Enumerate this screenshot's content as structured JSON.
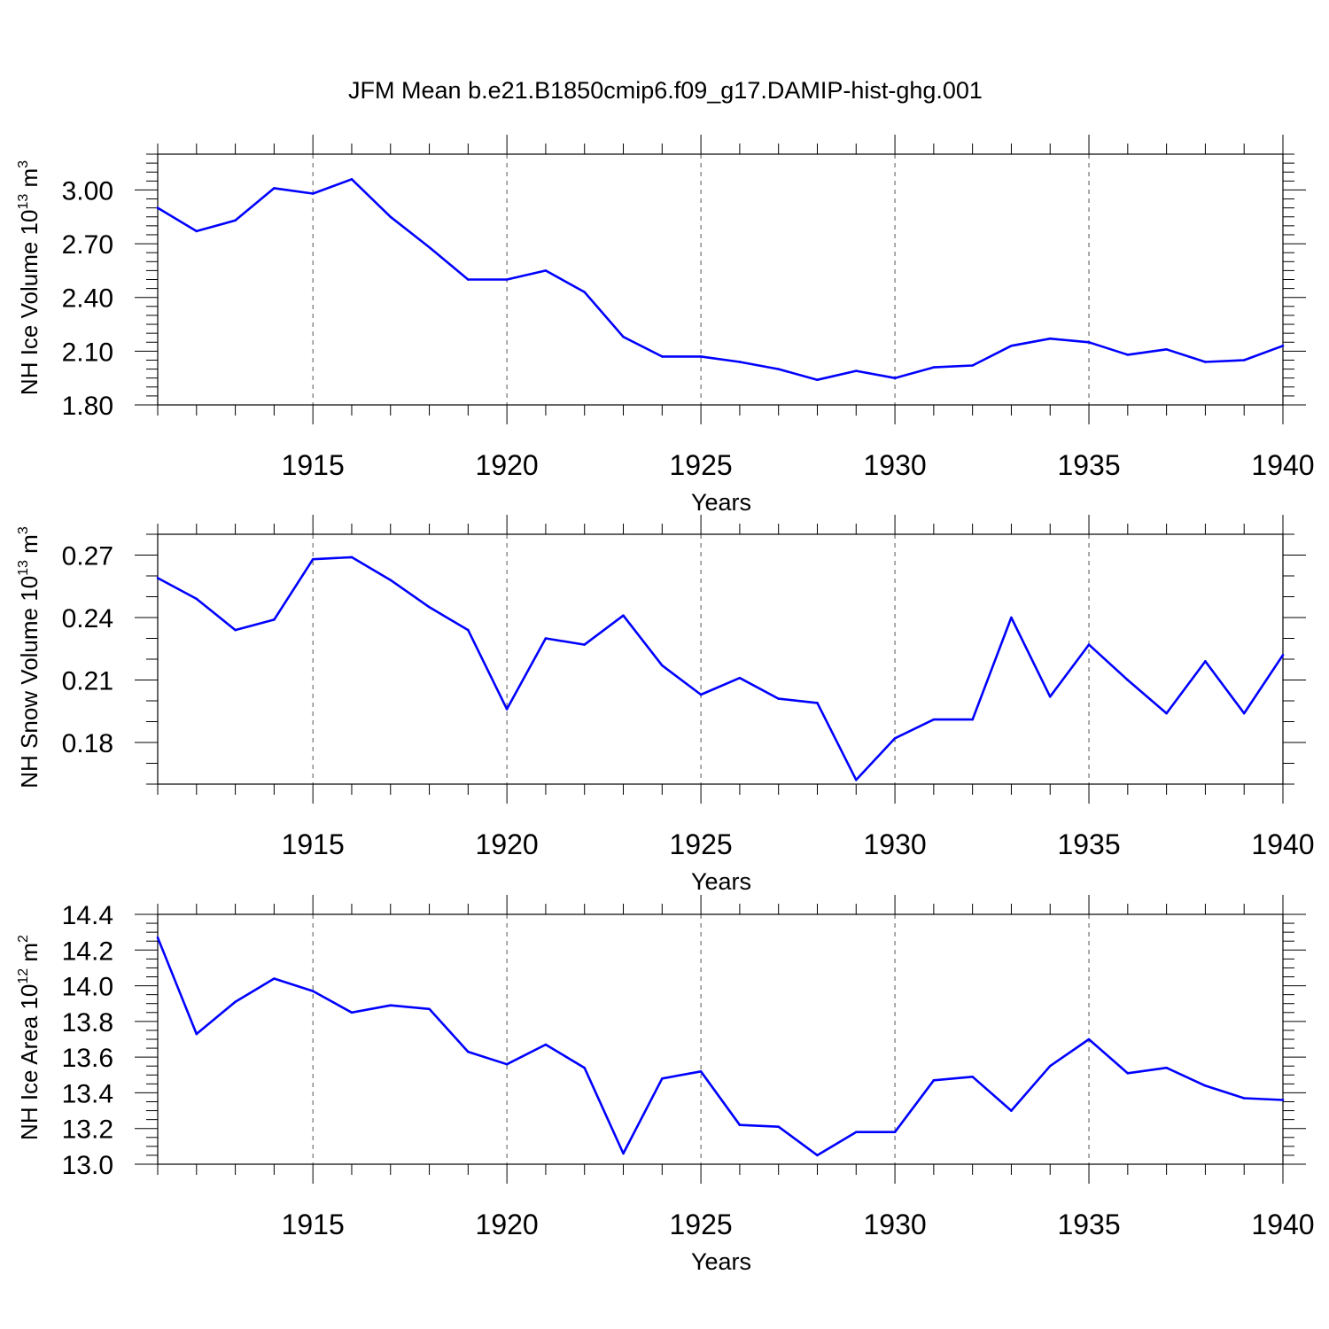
{
  "chart_data": [
    {
      "type": "line",
      "title": "JFM Mean b.e21.B1850cmip6.f09_g17.DAMIP-hist-ghg.001",
      "xlabel": "Years",
      "ylabel": "NH Ice Volume 10",
      "ylabel_exp": "13",
      "ylabel_unit": "m",
      "ylabel_unit_exp": "3",
      "xlim": [
        1911,
        1940
      ],
      "ylim": [
        1.8,
        3.2
      ],
      "xticks": [
        1915,
        1920,
        1925,
        1930,
        1935,
        1940
      ],
      "yticks": [
        1.8,
        2.1,
        2.4,
        2.7,
        3.0
      ],
      "ytick_labels": [
        "1.80",
        "2.10",
        "2.40",
        "2.70",
        "3.00"
      ],
      "grid": "vertical dashed at major x ticks",
      "color": "#0000ff",
      "x": [
        1911,
        1912,
        1913,
        1914,
        1915,
        1916,
        1917,
        1918,
        1919,
        1920,
        1921,
        1922,
        1923,
        1924,
        1925,
        1926,
        1927,
        1928,
        1929,
        1930,
        1931,
        1932,
        1933,
        1934,
        1935,
        1936,
        1937,
        1938,
        1939,
        1940
      ],
      "values": [
        2.9,
        2.77,
        2.83,
        3.01,
        2.98,
        3.06,
        2.85,
        2.68,
        2.5,
        2.5,
        2.55,
        2.43,
        2.18,
        2.07,
        2.07,
        2.04,
        2.0,
        1.94,
        1.99,
        1.95,
        2.01,
        2.02,
        2.13,
        2.17,
        2.15,
        2.08,
        2.11,
        2.04,
        2.05,
        2.13
      ]
    },
    {
      "type": "line",
      "xlabel": "Years",
      "ylabel": "NH Snow Volume 10",
      "ylabel_exp": "13",
      "ylabel_unit": "m",
      "ylabel_unit_exp": "3",
      "xlim": [
        1911,
        1940
      ],
      "ylim": [
        0.16,
        0.28
      ],
      "xticks": [
        1915,
        1920,
        1925,
        1930,
        1935,
        1940
      ],
      "yticks": [
        0.18,
        0.21,
        0.24,
        0.27
      ],
      "ytick_labels": [
        "0.18",
        "0.21",
        "0.24",
        "0.27"
      ],
      "grid": "vertical dashed at major x ticks",
      "color": "#0000ff",
      "x": [
        1911,
        1912,
        1913,
        1914,
        1915,
        1916,
        1917,
        1918,
        1919,
        1920,
        1921,
        1922,
        1923,
        1924,
        1925,
        1926,
        1927,
        1928,
        1929,
        1930,
        1931,
        1932,
        1933,
        1934,
        1935,
        1936,
        1937,
        1938,
        1939,
        1940
      ],
      "values": [
        0.259,
        0.249,
        0.234,
        0.239,
        0.268,
        0.269,
        0.258,
        0.245,
        0.234,
        0.196,
        0.23,
        0.227,
        0.241,
        0.217,
        0.203,
        0.211,
        0.201,
        0.199,
        0.162,
        0.182,
        0.191,
        0.191,
        0.24,
        0.202,
        0.227,
        0.21,
        0.194,
        0.219,
        0.194,
        0.222
      ]
    },
    {
      "type": "line",
      "xlabel": "Years",
      "ylabel": "NH Ice Area 10",
      "ylabel_exp": "12",
      "ylabel_unit": "m",
      "ylabel_unit_exp": "2",
      "xlim": [
        1911,
        1940
      ],
      "ylim": [
        13.0,
        14.4
      ],
      "xticks": [
        1915,
        1920,
        1925,
        1930,
        1935,
        1940
      ],
      "yticks": [
        13.0,
        13.2,
        13.4,
        13.6,
        13.8,
        14.0,
        14.2,
        14.4
      ],
      "ytick_labels": [
        "13.0",
        "13.2",
        "13.4",
        "13.6",
        "13.8",
        "14.0",
        "14.2",
        "14.4"
      ],
      "grid": "vertical dashed at major x ticks",
      "color": "#0000ff",
      "x": [
        1911,
        1912,
        1913,
        1914,
        1915,
        1916,
        1917,
        1918,
        1919,
        1920,
        1921,
        1922,
        1923,
        1924,
        1925,
        1926,
        1927,
        1928,
        1929,
        1930,
        1931,
        1932,
        1933,
        1934,
        1935,
        1936,
        1937,
        1938,
        1939,
        1940
      ],
      "values": [
        14.27,
        13.73,
        13.91,
        14.04,
        13.97,
        13.85,
        13.89,
        13.87,
        13.63,
        13.56,
        13.67,
        13.54,
        13.06,
        13.48,
        13.52,
        13.22,
        13.21,
        13.05,
        13.18,
        13.18,
        13.47,
        13.49,
        13.3,
        13.55,
        13.7,
        13.51,
        13.54,
        13.44,
        13.37,
        13.36
      ]
    }
  ]
}
